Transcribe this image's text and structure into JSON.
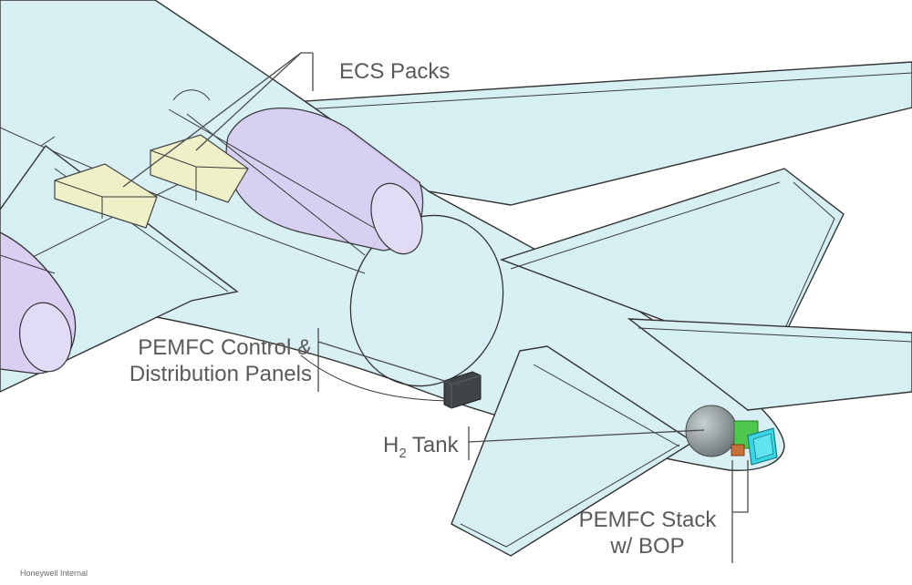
{
  "labels": {
    "ecs_packs": "ECS Packs",
    "pemfc_control_line1": "PEMFC Control &",
    "pemfc_control_line2": "Distribution Panels",
    "h2_tank_main": "H",
    "h2_tank_sub": "2",
    "h2_tank_rest": " Tank",
    "pemfc_stack_line1": "PEMFC Stack",
    "pemfc_stack_line2": "w/ BOP"
  },
  "footer": "Honeywell Internal",
  "colors": {
    "airframe_fill": "#d8f0f4",
    "nacelle_fill": "#d3c8f0",
    "ecs_pack_fill": "#eef0c8",
    "panel_fill": "#3e4448",
    "tank_fill": "#8e9698",
    "stack_green": "#4dc84d",
    "stack_cyan": "#3ad6e6",
    "stack_orange": "#c8703a"
  }
}
